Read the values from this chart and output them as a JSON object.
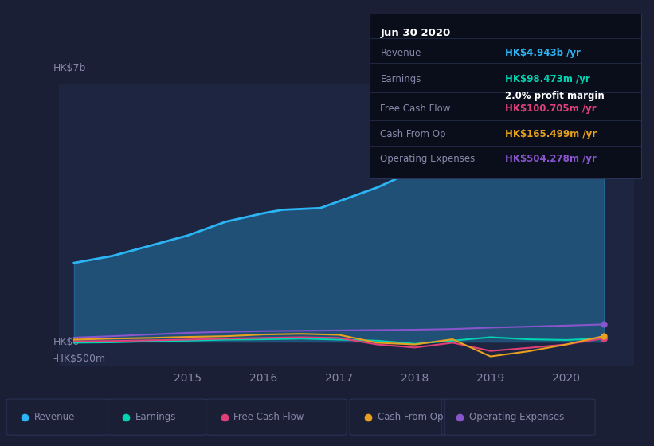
{
  "bg_color": "#1a1f35",
  "plot_bg_color": "#1e2540",
  "grid_color": "#2a3255",
  "text_color": "#8888aa",
  "title_color": "#ffffff",
  "y_label_top": "HK$7b",
  "y_label_zero": "HK$0",
  "y_label_neg": "-HK$500m",
  "ylim": [
    -700000000,
    7500000000
  ],
  "zero_y": 0,
  "series_colors": {
    "Revenue": "#2bb5f5",
    "Earnings": "#00d4b0",
    "Free Cash Flow": "#e0407a",
    "Cash From Op": "#e8a020",
    "Operating Expenses": "#8855cc"
  },
  "legend_items": [
    "Revenue",
    "Earnings",
    "Free Cash Flow",
    "Cash From Op",
    "Operating Expenses"
  ],
  "tooltip": {
    "title": "Jun 30 2020",
    "bg_color": "#0a0e1a",
    "border_color": "#333355",
    "rows": [
      {
        "label": "Revenue",
        "value": "HK$4.943b /yr",
        "value_color": "#2bb5f5",
        "margin": null
      },
      {
        "label": "Earnings",
        "value": "HK$98.473m /yr",
        "value_color": "#00d4b0",
        "margin": "2.0% profit margin"
      },
      {
        "label": "Free Cash Flow",
        "value": "HK$100.705m /yr",
        "value_color": "#e0407a",
        "margin": null
      },
      {
        "label": "Cash From Op",
        "value": "HK$165.499m /yr",
        "value_color": "#e8a020",
        "margin": null
      },
      {
        "label": "Operating Expenses",
        "value": "HK$504.278m /yr",
        "value_color": "#8855cc",
        "margin": null
      }
    ]
  },
  "x_revenue": [
    2013.5,
    2014.0,
    2014.5,
    2015.0,
    2015.5,
    2016.0,
    2016.25,
    2016.75,
    2017.5,
    2018.0,
    2018.5,
    2019.0,
    2019.5,
    2020.0,
    2020.5
  ],
  "y_revenue": [
    2300000000,
    2500000000,
    2800000000,
    3100000000,
    3500000000,
    3750000000,
    3850000000,
    3900000000,
    4500000000,
    5000000000,
    5900000000,
    6500000000,
    6200000000,
    5300000000,
    4943000000
  ],
  "x_earnings": [
    2013.5,
    2014.0,
    2014.5,
    2015.0,
    2015.5,
    2016.0,
    2016.5,
    2017.0,
    2017.5,
    2018.0,
    2018.5,
    2019.0,
    2019.5,
    2020.0,
    2020.5
  ],
  "y_earnings": [
    -30000000,
    -20000000,
    10000000,
    30000000,
    60000000,
    70000000,
    90000000,
    60000000,
    30000000,
    -60000000,
    30000000,
    130000000,
    70000000,
    50000000,
    98473000
  ],
  "x_fcf": [
    2013.5,
    2014.0,
    2014.5,
    2015.0,
    2015.5,
    2016.0,
    2016.5,
    2017.0,
    2017.5,
    2018.0,
    2018.5,
    2019.0,
    2019.5,
    2020.0,
    2020.5
  ],
  "y_fcf": [
    10000000,
    20000000,
    40000000,
    60000000,
    90000000,
    110000000,
    130000000,
    110000000,
    -80000000,
    -170000000,
    -30000000,
    -270000000,
    -180000000,
    -80000000,
    100705000
  ],
  "x_cfo": [
    2013.5,
    2014.0,
    2014.5,
    2015.0,
    2015.5,
    2016.0,
    2016.5,
    2017.0,
    2017.5,
    2018.0,
    2018.5,
    2019.0,
    2019.5,
    2020.0,
    2020.5
  ],
  "y_cfo": [
    60000000,
    90000000,
    110000000,
    140000000,
    160000000,
    210000000,
    230000000,
    200000000,
    -30000000,
    -80000000,
    70000000,
    -430000000,
    -280000000,
    -80000000,
    165499000
  ],
  "x_opex": [
    2013.5,
    2014.0,
    2014.5,
    2015.0,
    2015.5,
    2016.0,
    2016.5,
    2017.0,
    2017.5,
    2018.0,
    2018.5,
    2019.0,
    2019.5,
    2020.0,
    2020.5
  ],
  "y_opex": [
    120000000,
    160000000,
    210000000,
    260000000,
    290000000,
    310000000,
    320000000,
    330000000,
    340000000,
    350000000,
    370000000,
    410000000,
    440000000,
    470000000,
    504278000
  ],
  "xticks": [
    2015.0,
    2016.0,
    2017.0,
    2018.0,
    2019.0,
    2020.0
  ],
  "xtick_labels": [
    "2015",
    "2016",
    "2017",
    "2018",
    "2019",
    "2020"
  ],
  "xlim": [
    2013.3,
    2020.9
  ]
}
